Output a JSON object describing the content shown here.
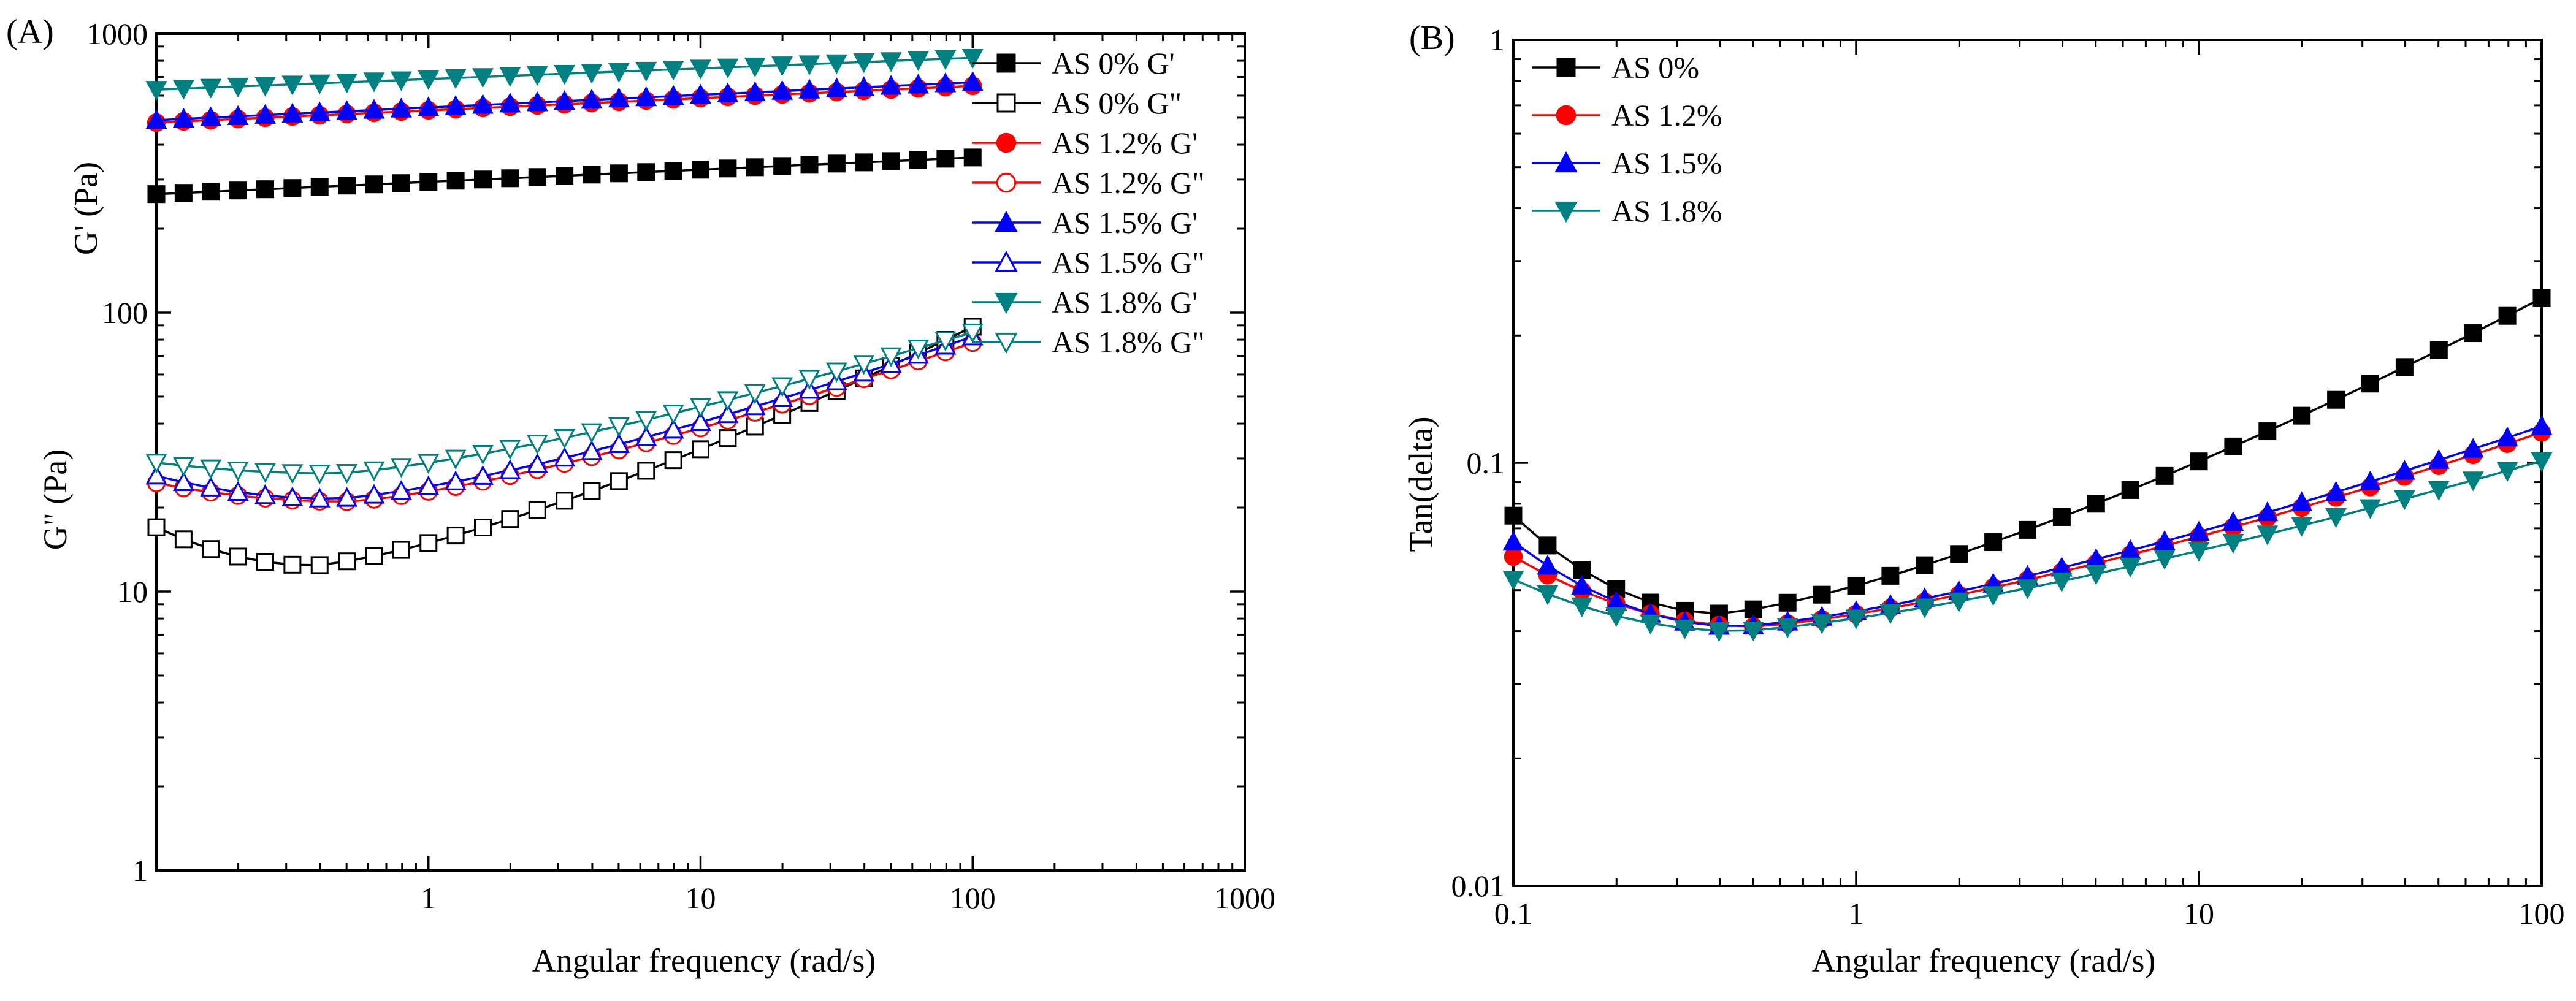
{
  "chart_data": [
    {
      "panel": "(A)",
      "type": "line",
      "scale": "log-log",
      "xlabel": "Angular frequency (rad/s)",
      "ylabel_upper": "G' (Pa)",
      "ylabel_lower": "G\" (Pa)",
      "xlim": [
        0.1,
        1000
      ],
      "ylim": [
        1,
        1000
      ],
      "xticks": [
        {
          "v": 1,
          "t": "1"
        },
        {
          "v": 10,
          "t": "10"
        },
        {
          "v": 100,
          "t": "100"
        },
        {
          "v": 1000,
          "t": "1000"
        }
      ],
      "yticks": [
        {
          "v": 1,
          "t": "1"
        },
        {
          "v": 10,
          "t": "10"
        },
        {
          "v": 100,
          "t": "100"
        },
        {
          "v": 1000,
          "t": "1000"
        }
      ],
      "legend_position": "top-right",
      "series": [
        {
          "name": "AS 0% G'",
          "color": "#000000",
          "marker": "square",
          "filled": true,
          "y_start": 266,
          "y_end": 360
        },
        {
          "name": "AS 0% G\"",
          "color": "#000000",
          "marker": "square",
          "filled": false,
          "y_start": 17,
          "y_min": 12.4,
          "x_min": 0.38,
          "y_end": 89
        },
        {
          "name": "AS 1.2% G'",
          "color": "#ff0000",
          "marker": "circle",
          "filled": true,
          "y_start": 480,
          "y_end": 650
        },
        {
          "name": "AS 1.2% G\"",
          "color": "#ff0000",
          "marker": "circle",
          "filled": false,
          "y_start": 24.5,
          "y_min": 21,
          "x_min": 0.5,
          "y_end": 78
        },
        {
          "name": "AS 1.5% G'",
          "color": "#0000ff",
          "marker": "triangle-up",
          "filled": true,
          "y_start": 490,
          "y_end": 670
        },
        {
          "name": "AS 1.5% G\"",
          "color": "#0000ff",
          "marker": "triangle-up",
          "filled": false,
          "y_start": 26,
          "y_min": 21.5,
          "x_min": 0.45,
          "y_end": 82
        },
        {
          "name": "AS 1.8% G'",
          "color": "#008080",
          "marker": "triangle-down",
          "filled": true,
          "y_start": 630,
          "y_end": 820
        },
        {
          "name": "AS 1.8% G\"",
          "color": "#008080",
          "marker": "triangle-down",
          "filled": false,
          "y_start": 29,
          "y_min": 26.5,
          "x_min": 0.45,
          "y_end": 85
        }
      ]
    },
    {
      "panel": "(B)",
      "type": "line",
      "scale": "log-log",
      "xlabel": "Angular frequency (rad/s)",
      "ylabel": "Tan(delta)",
      "xlim": [
        0.1,
        100
      ],
      "ylim": [
        0.01,
        1
      ],
      "xticks": [
        {
          "v": 0.1,
          "t": "0.1"
        },
        {
          "v": 1,
          "t": "1"
        },
        {
          "v": 10,
          "t": "10"
        },
        {
          "v": 100,
          "t": "100"
        }
      ],
      "yticks": [
        {
          "v": 0.01,
          "t": "0.01"
        },
        {
          "v": 0.1,
          "t": "0.1"
        },
        {
          "v": 1,
          "t": "1"
        }
      ],
      "legend_position": "top-left",
      "series": [
        {
          "name": "AS 0%",
          "color": "#000000",
          "marker": "square",
          "filled": true,
          "y_start": 0.075,
          "y_min": 0.044,
          "x_min": 0.4,
          "y_end": 0.245
        },
        {
          "name": "AS 1.2%",
          "color": "#ff0000",
          "marker": "circle",
          "filled": true,
          "y_start": 0.06,
          "y_min": 0.041,
          "x_min": 0.5,
          "y_end": 0.118
        },
        {
          "name": "AS 1.5%",
          "color": "#0000ff",
          "marker": "triangle-up",
          "filled": true,
          "y_start": 0.065,
          "y_min": 0.041,
          "x_min": 0.45,
          "y_end": 0.122
        },
        {
          "name": "AS 1.8%",
          "color": "#008080",
          "marker": "triangle-down",
          "filled": true,
          "y_start": 0.053,
          "y_min": 0.04,
          "x_min": 0.45,
          "y_end": 0.101
        }
      ]
    }
  ]
}
